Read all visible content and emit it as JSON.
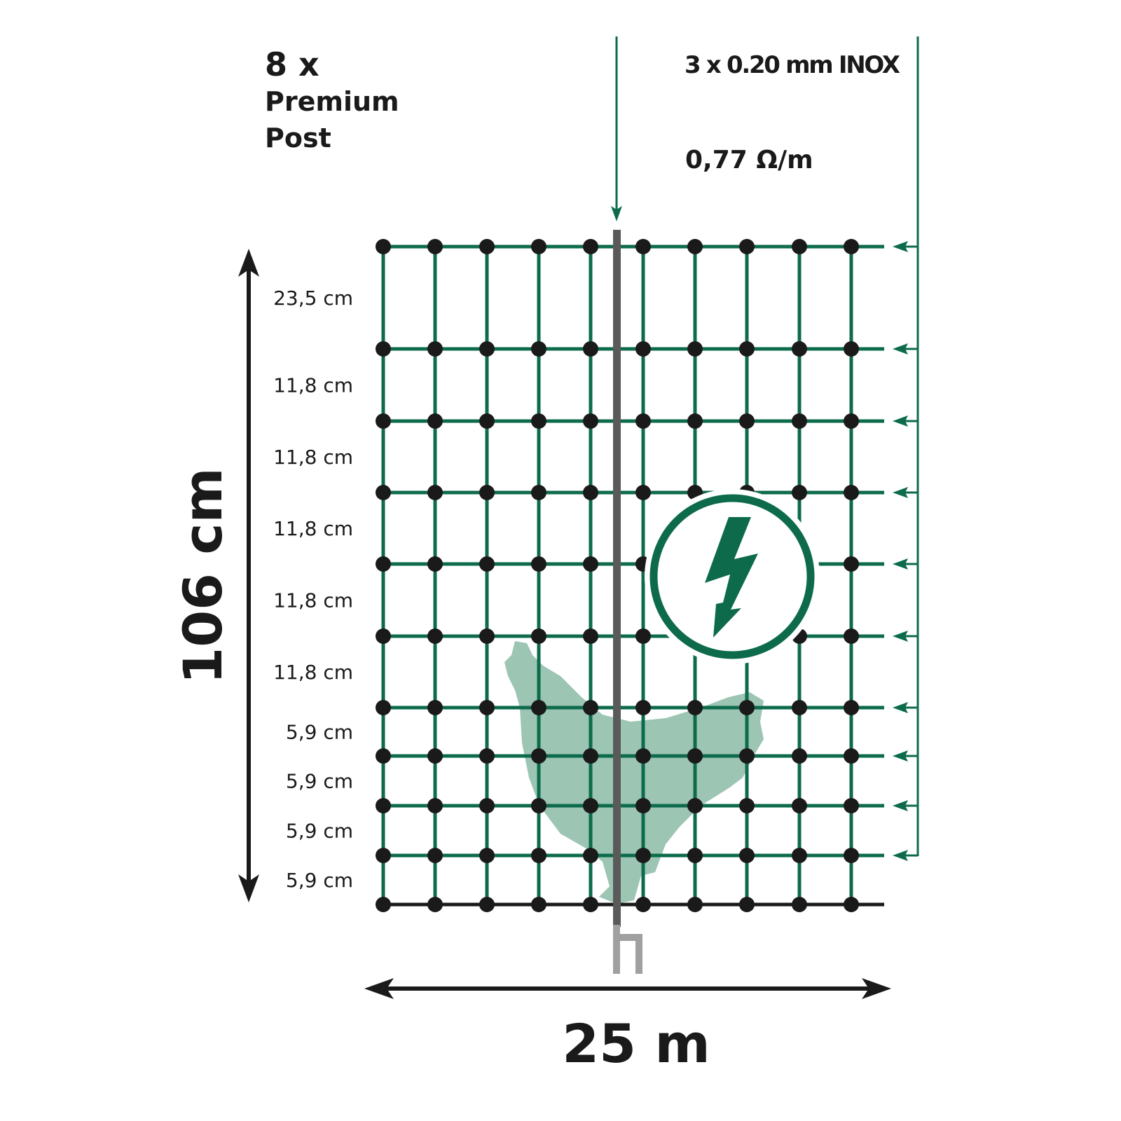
{
  "posts": {
    "count": "8 x",
    "line1": "Premium",
    "line2": "Post"
  },
  "wire": {
    "spec": "3 x 0.20 mm INOX",
    "resistance": "0,77 Ω/m"
  },
  "height_label": "106 cm",
  "length_label": "25 m",
  "spacings": [
    "23,5 cm",
    "11,8 cm",
    "11,8 cm",
    "11,8 cm",
    "11,8 cm",
    "11,8 cm",
    "5,9 cm",
    "5,9 cm",
    "5,9 cm",
    "5,9 cm"
  ],
  "colors": {
    "wire_green": "#0d6b4c",
    "knot": "#1a1a1a",
    "post": "#5a5a5a",
    "post_spike": "#a0a0a0",
    "chicken": "#9cc5b3"
  },
  "icons": [
    "high-voltage-warning-icon",
    "chicken-silhouette"
  ]
}
